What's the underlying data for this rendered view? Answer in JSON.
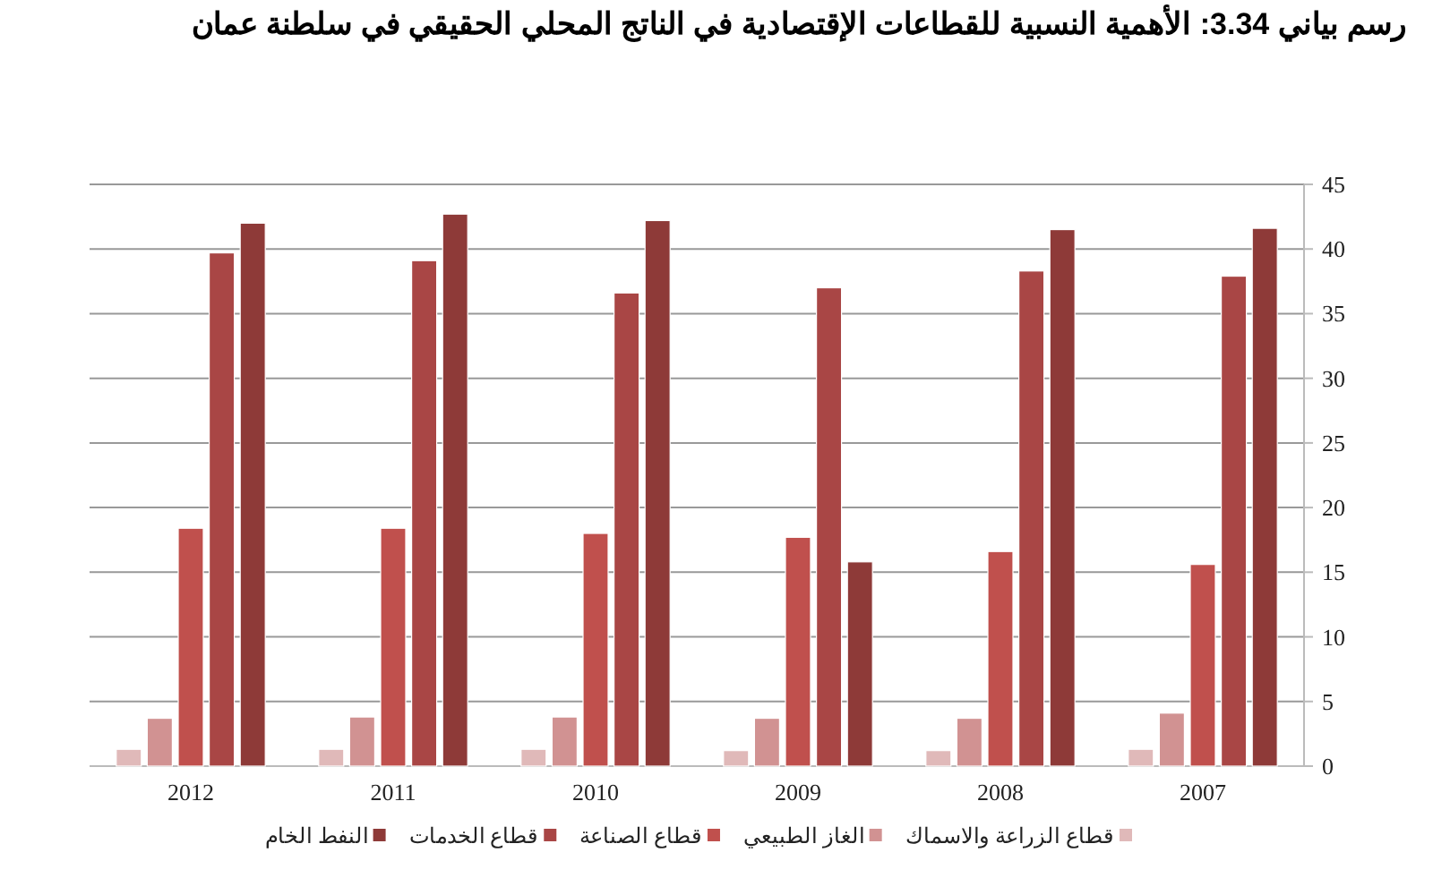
{
  "chart_data": {
    "type": "bar",
    "title": "رسم بياني 3.34: الأهمية النسبية للقطاعات الإقتصادية في الناتج المحلي الحقيقي في سلطنة عمان",
    "categories": [
      "2012",
      "2011",
      "2010",
      "2009",
      "2008",
      "2007"
    ],
    "series": [
      {
        "name": "قطاع الزراعة والاسماك",
        "color": "#e0b9b9",
        "values": [
          1.3,
          1.3,
          1.3,
          1.2,
          1.2,
          1.3
        ]
      },
      {
        "name": "الغاز الطبيعي",
        "color": "#d19292",
        "values": [
          3.7,
          3.8,
          3.8,
          3.7,
          3.7,
          4.1
        ]
      },
      {
        "name": "قطاع الصناعة",
        "color": "#c0504d",
        "values": [
          18.4,
          18.4,
          18.0,
          17.7,
          16.6,
          15.6
        ]
      },
      {
        "name": "قطاع الخدمات",
        "color": "#a94645",
        "values": [
          39.7,
          39.1,
          36.6,
          37.0,
          38.3,
          37.9
        ]
      },
      {
        "name": "النفط الخام",
        "color": "#8e3a38",
        "values": [
          42.0,
          42.7,
          42.2,
          15.8,
          41.5,
          41.6
        ]
      }
    ],
    "ylim": [
      0,
      45
    ],
    "yticks": [
      0,
      5,
      10,
      15,
      20,
      25,
      30,
      35,
      40,
      45
    ],
    "grid": "y",
    "legend": "bottom"
  }
}
